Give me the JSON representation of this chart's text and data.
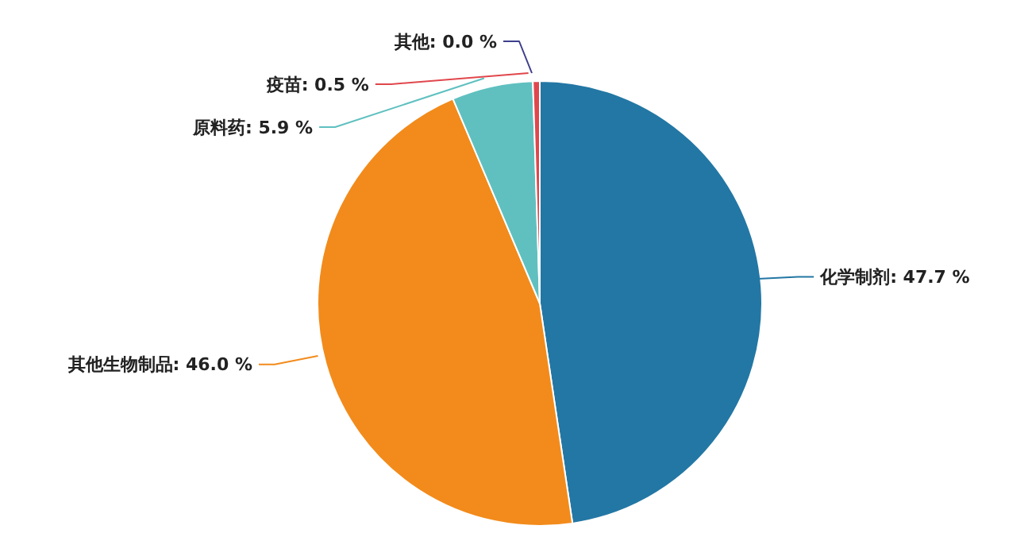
{
  "chart_data": {
    "type": "pie",
    "categories": [
      "化学制剂",
      "其他生物制品",
      "原料药",
      "疫苗",
      "其他"
    ],
    "values": [
      47.7,
      46.0,
      5.9,
      0.5,
      0.0
    ],
    "value_labels": [
      ": 47.7 %",
      ": 46.0 %",
      ": 5.9 %",
      ": 0.5 %",
      ": 0.0 %"
    ],
    "colors": [
      "#2377a4",
      "#f28b1b",
      "#60c0c0",
      "#e0474c",
      "#3d3f8c"
    ],
    "legend": false
  }
}
